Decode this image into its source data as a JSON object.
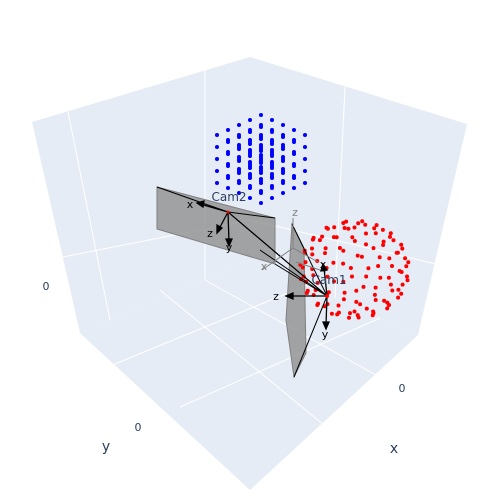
{
  "chart_data": {
    "type": "scatter",
    "scene": {
      "bgcolor": "#e5ecf6",
      "gridcolor": "#ffffff",
      "axes": [
        {
          "name": "x",
          "label": "x",
          "tick_labels": [
            "0"
          ]
        },
        {
          "name": "y",
          "label": "y",
          "tick_labels": [
            "0"
          ]
        },
        {
          "name": "z",
          "label": "",
          "tick_labels": [
            "0"
          ]
        }
      ]
    },
    "series": [
      {
        "kind": "grid-cube",
        "color": "#0000ff",
        "nx": 5,
        "ny": 5,
        "nz": 5,
        "xrange": [
          -0.4,
          0.4
        ],
        "yrange": [
          -0.4,
          0.4
        ],
        "zrange": [
          -0.4,
          0.4
        ],
        "center": [
          -1.2,
          -1.4,
          0.6
        ]
      },
      {
        "kind": "sphere-surface",
        "color": "#ff0000",
        "points": 120,
        "radius": 0.7,
        "center": [
          0.3,
          -1.6,
          -0.7
        ]
      }
    ],
    "cameras": [
      {
        "label": "Cam1",
        "axis_labels": [
          "x",
          "y",
          "z"
        ],
        "color": "#808080"
      },
      {
        "label": "Cam2",
        "axis_labels": [
          "x",
          "y",
          "z"
        ],
        "color": "#808080"
      }
    ],
    "ghost_axis_labels": [
      "z",
      "x"
    ]
  }
}
